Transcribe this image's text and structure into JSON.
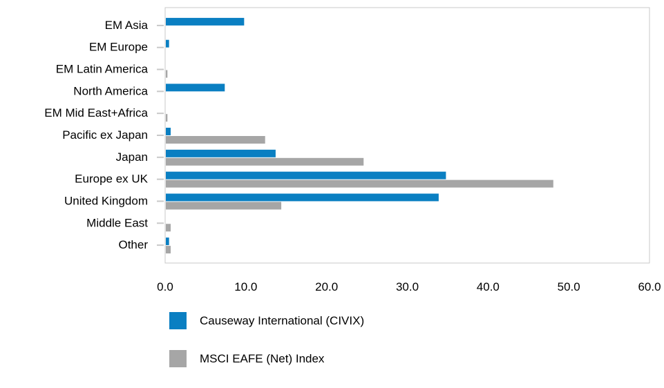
{
  "chart_data": {
    "type": "bar",
    "orientation": "horizontal",
    "categories": [
      "EM Asia",
      "EM Europe",
      "EM Latin America",
      "North America",
      "EM Mid East+Africa",
      "Pacific ex Japan",
      "Japan",
      "Europe ex UK",
      "United Kingdom",
      "Middle East",
      "Other"
    ],
    "series": [
      {
        "name": "Causeway International (CIVIX)",
        "color": "#0a7fc2",
        "values": [
          9.7,
          0.4,
          0.0,
          7.3,
          0.0,
          0.6,
          13.6,
          34.7,
          33.8,
          0.0,
          0.4
        ]
      },
      {
        "name": "MSCI EAFE (Net) Index",
        "color": "#a6a6a6",
        "values": [
          0.0,
          0.0,
          0.2,
          0.0,
          0.2,
          12.3,
          24.5,
          48.0,
          14.3,
          0.6,
          0.6
        ]
      }
    ],
    "xticks": [
      "0.0",
      "10.0",
      "20.0",
      "30.0",
      "40.0",
      "50.0",
      "60.0"
    ],
    "xlim": [
      0,
      60
    ],
    "grid": false,
    "legend_position": "bottom"
  }
}
